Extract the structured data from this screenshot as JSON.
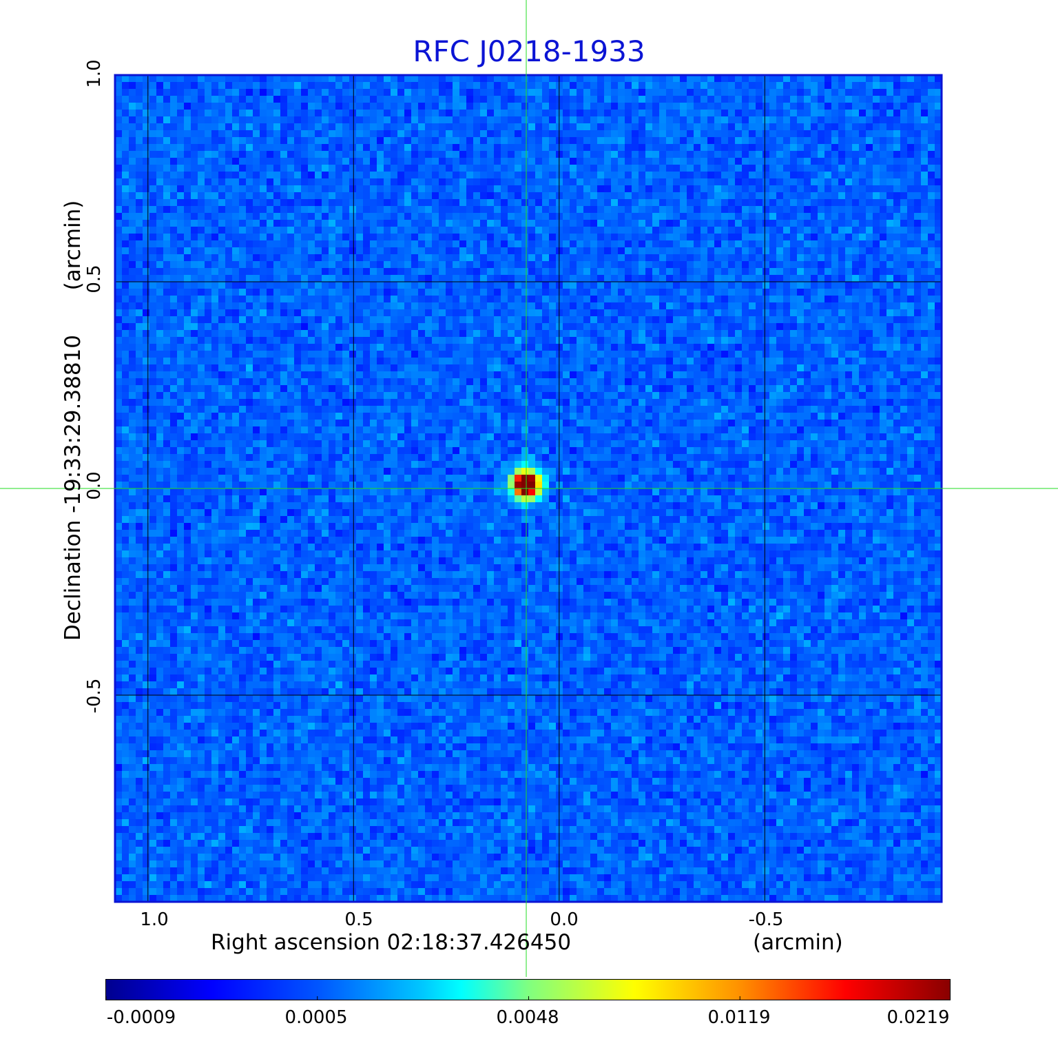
{
  "chart_data": {
    "type": "heatmap",
    "title": "RFC J0218-1933",
    "xlabel": "Right ascension  02:18:37.426450",
    "xunit": "(arcmin)",
    "ylabel": "Declination  -19:33:29.38810",
    "yunit": "(arcmin)",
    "x_ticks": [
      1.0,
      0.5,
      0.0,
      -0.5
    ],
    "x_tick_labels": [
      "1.0",
      "0.5",
      "0.0",
      "-0.5"
    ],
    "y_ticks": [
      1.0,
      0.5,
      0.0,
      -0.5
    ],
    "y_tick_labels": [
      "1.0",
      "0.5",
      "0.0",
      "-0.5"
    ],
    "xlim": [
      1.08,
      -0.93
    ],
    "ylim": [
      -1.0,
      1.0
    ],
    "grid": true,
    "colormap": "jet",
    "colorbar": {
      "tick_labels": [
        "-0.0009",
        "0.0005",
        "0.0048",
        "0.0119",
        "0.0219"
      ],
      "range": [
        -0.0009,
        0.0219
      ]
    },
    "source": {
      "x": 0.08,
      "y": 0.01,
      "peak": 0.0219
    },
    "crosshair": {
      "x": 0.08,
      "y": 0.0,
      "color": "#22dd22"
    },
    "noise_level": 0.0003
  },
  "colors": {
    "title": "#0b14d4",
    "frame": "#0b14d4",
    "grid": "#000000",
    "crosshair": "#22dd22"
  }
}
